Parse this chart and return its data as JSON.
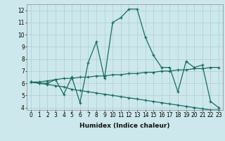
{
  "xlabel": "Humidex (Indice chaleur)",
  "ylabel": "",
  "background_color": "#cde8ec",
  "grid_color": "#aacdd4",
  "line_color": "#1a6b60",
  "xlim": [
    -0.5,
    23.5
  ],
  "ylim": [
    3.8,
    12.5
  ],
  "xticks": [
    0,
    1,
    2,
    3,
    4,
    5,
    6,
    7,
    8,
    9,
    10,
    11,
    12,
    13,
    14,
    15,
    16,
    17,
    18,
    19,
    20,
    21,
    22,
    23
  ],
  "yticks": [
    4,
    5,
    6,
    7,
    8,
    9,
    10,
    11,
    12
  ],
  "series": [
    [
      6.1,
      6.0,
      6.0,
      6.3,
      5.1,
      6.5,
      4.4,
      7.7,
      9.4,
      6.4,
      11.0,
      11.4,
      12.1,
      12.1,
      9.8,
      8.3,
      7.3,
      7.3,
      5.3,
      7.8,
      7.3,
      7.5,
      4.5,
      4.0
    ],
    [
      6.1,
      6.1,
      6.2,
      6.3,
      6.4,
      6.4,
      6.5,
      6.5,
      6.6,
      6.6,
      6.7,
      6.7,
      6.8,
      6.8,
      6.9,
      6.9,
      7.0,
      7.0,
      7.1,
      7.1,
      7.2,
      7.2,
      7.3,
      7.3
    ],
    [
      6.1,
      6.0,
      5.9,
      5.8,
      5.7,
      5.5,
      5.4,
      5.3,
      5.2,
      5.1,
      5.0,
      4.9,
      4.8,
      4.7,
      4.6,
      4.5,
      4.4,
      4.3,
      4.2,
      4.1,
      4.0,
      3.9,
      3.8,
      3.8
    ]
  ],
  "tick_fontsize": 5.5,
  "xlabel_fontsize": 6.5,
  "marker_size": 3.5,
  "line_width": 0.9
}
